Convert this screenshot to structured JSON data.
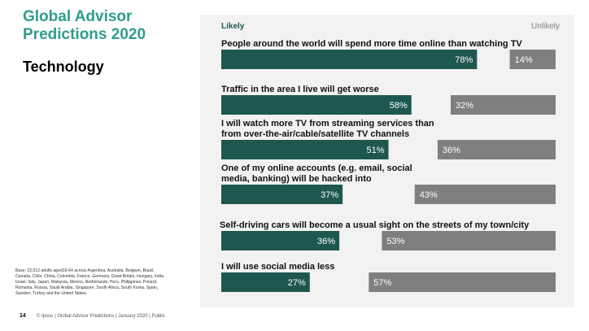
{
  "header": {
    "title": "Global Advisor Predictions 2020",
    "section": "Technology"
  },
  "base_note": "Base: 22,512 adults aged16-64 across Argentina, Australia, Belgium, Brazil, Canada, Chile, China, Colombia, France, Germany, Great Britain, Hungary, India, Israel, Italy, Japan, Malaysia, Mexico, Netherlands, Peru, Philippines, Poland, Romania, Russia, Saudi Arabia, Singapore, South Africa, South Korea, Spain, Sweden, Turkey and the United States.",
  "footer": {
    "page_number": "14",
    "text": "© Ipsos | Global Advisor Predictions | January 2020 | Public"
  },
  "colors": {
    "accent": "#2e9e8a",
    "likely": "#1e5750",
    "unlikely": "#7f7f7f",
    "panel": "#f2f2f2"
  },
  "chart_data": {
    "type": "bar",
    "legend": {
      "likely": "Likely",
      "unlikely": "Unlikely"
    },
    "value_suffix": "%",
    "items": [
      {
        "statement": [
          "People around the world will spend more time online than watching TV"
        ],
        "likely": 78,
        "unlikely": 14
      },
      {
        "statement": [
          "Traffic in the area I live will get worse"
        ],
        "likely": 58,
        "unlikely": 32
      },
      {
        "statement": [
          "I will watch more TV from streaming services than",
          "from over-the-air/cable/satellite TV channels"
        ],
        "likely": 51,
        "unlikely": 36
      },
      {
        "statement": [
          "One of my online accounts (e.g. email, social",
          "media, banking) will be hacked into"
        ],
        "likely": 37,
        "unlikely": 43
      },
      {
        "statement": [
          "Self-driving cars will become a usual sight on the streets of my town/city"
        ],
        "likely": 36,
        "unlikely": 53
      },
      {
        "statement": [
          "I will use social media less"
        ],
        "likely": 27,
        "unlikely": 57
      }
    ],
    "xlim": [
      0,
      100
    ]
  }
}
